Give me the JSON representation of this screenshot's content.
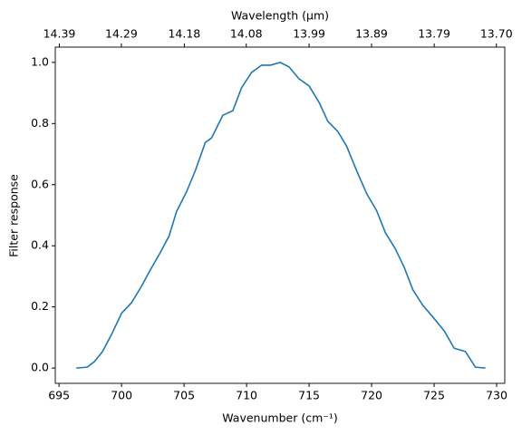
{
  "chart_data": {
    "type": "line",
    "xlabel": "Wavenumber (cm⁻¹)",
    "ylabel": "Filter response",
    "x2label": "Wavelength (μm)",
    "x2scale": "inverse",
    "x": [
      696.38,
      697.25,
      697.83,
      698.48,
      699.2,
      700.0,
      700.8,
      701.6,
      702.3,
      703.1,
      703.8,
      704.4,
      705.2,
      705.9,
      706.7,
      707.2,
      708.1,
      708.9,
      709.6,
      710.4,
      711.2,
      711.9,
      712.7,
      713.4,
      714.2,
      715.0,
      715.8,
      716.5,
      717.3,
      718.0,
      718.8,
      719.6,
      720.4,
      721.1,
      721.9,
      722.6,
      723.3,
      724.1,
      724.9,
      725.8,
      726.6,
      727.5,
      728.3,
      729.1
    ],
    "series": [
      {
        "color": "#1f77b4",
        "values": [
          0.0,
          0.003,
          0.021,
          0.054,
          0.11,
          0.179,
          0.214,
          0.268,
          0.321,
          0.378,
          0.432,
          0.512,
          0.577,
          0.646,
          0.738,
          0.753,
          0.827,
          0.842,
          0.917,
          0.967,
          0.991,
          0.991,
          1.0,
          0.985,
          0.946,
          0.923,
          0.869,
          0.807,
          0.774,
          0.726,
          0.646,
          0.571,
          0.515,
          0.443,
          0.39,
          0.33,
          0.256,
          0.205,
          0.167,
          0.122,
          0.065,
          0.054,
          0.003,
          0.0
        ]
      }
    ],
    "xlim": [
      694.7,
      730.65
    ],
    "ylim": [
      -0.05,
      1.05
    ],
    "xticks": [
      695,
      700,
      705,
      710,
      715,
      720,
      725,
      730
    ],
    "yticks": [
      {
        "value": 0,
        "label": "0.0"
      },
      {
        "value": 0.2,
        "label": "0.2"
      },
      {
        "value": 0.4,
        "label": "0.4"
      },
      {
        "value": 0.6,
        "label": "0.6"
      },
      {
        "value": 0.8,
        "label": "0.8"
      },
      {
        "value": 1.0,
        "label": "1.0"
      }
    ],
    "x2ticks": [
      {
        "value": 14.388,
        "label": "14.39"
      },
      {
        "value": 14.286,
        "label": "14.29"
      },
      {
        "value": 14.184,
        "label": "14.18"
      },
      {
        "value": 14.085,
        "label": "14.08"
      },
      {
        "value": 13.986,
        "label": "13.99"
      },
      {
        "value": 13.889,
        "label": "13.89"
      },
      {
        "value": 13.793,
        "label": "13.79"
      },
      {
        "value": 13.699,
        "label": "13.70"
      }
    ]
  }
}
